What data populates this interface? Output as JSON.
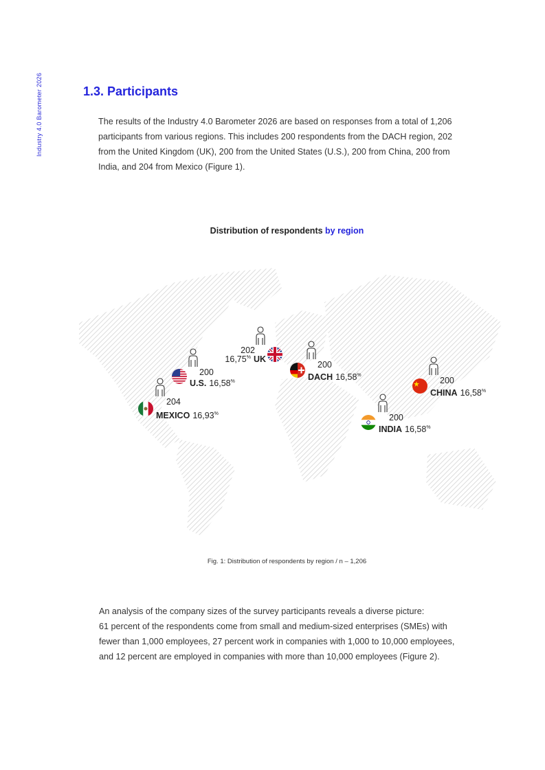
{
  "side_label": "Industry 4.0 Barometer 2026",
  "heading": "1.3. Participants",
  "intro": [
    "The results of the Industry 4.0 Barometer 2026 are based on responses from a total of 1,206",
    "participants from various regions. This includes 200 respondents from the DACH region, 202",
    "from the United Kingdom (UK), 200 from the United States (U.S.), 200 from China, 200 from",
    "India, and 204 from Mexico (Figure 1)."
  ],
  "figure": {
    "title": "Distribution of respondents",
    "title_highlight": "by region",
    "regions": [
      {
        "name": "UK",
        "count": "202",
        "share": "16,75",
        "unit": "%"
      },
      {
        "name": "U.S.",
        "count": "200",
        "share": "16,58",
        "unit": "%"
      },
      {
        "name": "MEXICO",
        "count": "204",
        "share": "16,93",
        "unit": "%"
      },
      {
        "name": "DACH",
        "count": "200",
        "share": "16,58",
        "unit": "%"
      },
      {
        "name": "CHINA",
        "count": "200",
        "share": "16,58",
        "unit": "%"
      },
      {
        "name": "INDIA",
        "count": "200",
        "share": "16,58",
        "unit": "%"
      }
    ],
    "caption": "Fig. 1: Distribution of respondents by region / n – 1,206"
  },
  "outro": [
    "An analysis of the company sizes of the survey participants reveals a diverse picture:",
    "61 percent of the respondents come from small and medium-sized enterprises (SMEs) with",
    "fewer than 1,000 employees, 27 percent work in companies with 1,000 to 10,000 employees,",
    "and 12 percent are employed in companies with more than 10,000 employees (Figure 2)."
  ]
}
